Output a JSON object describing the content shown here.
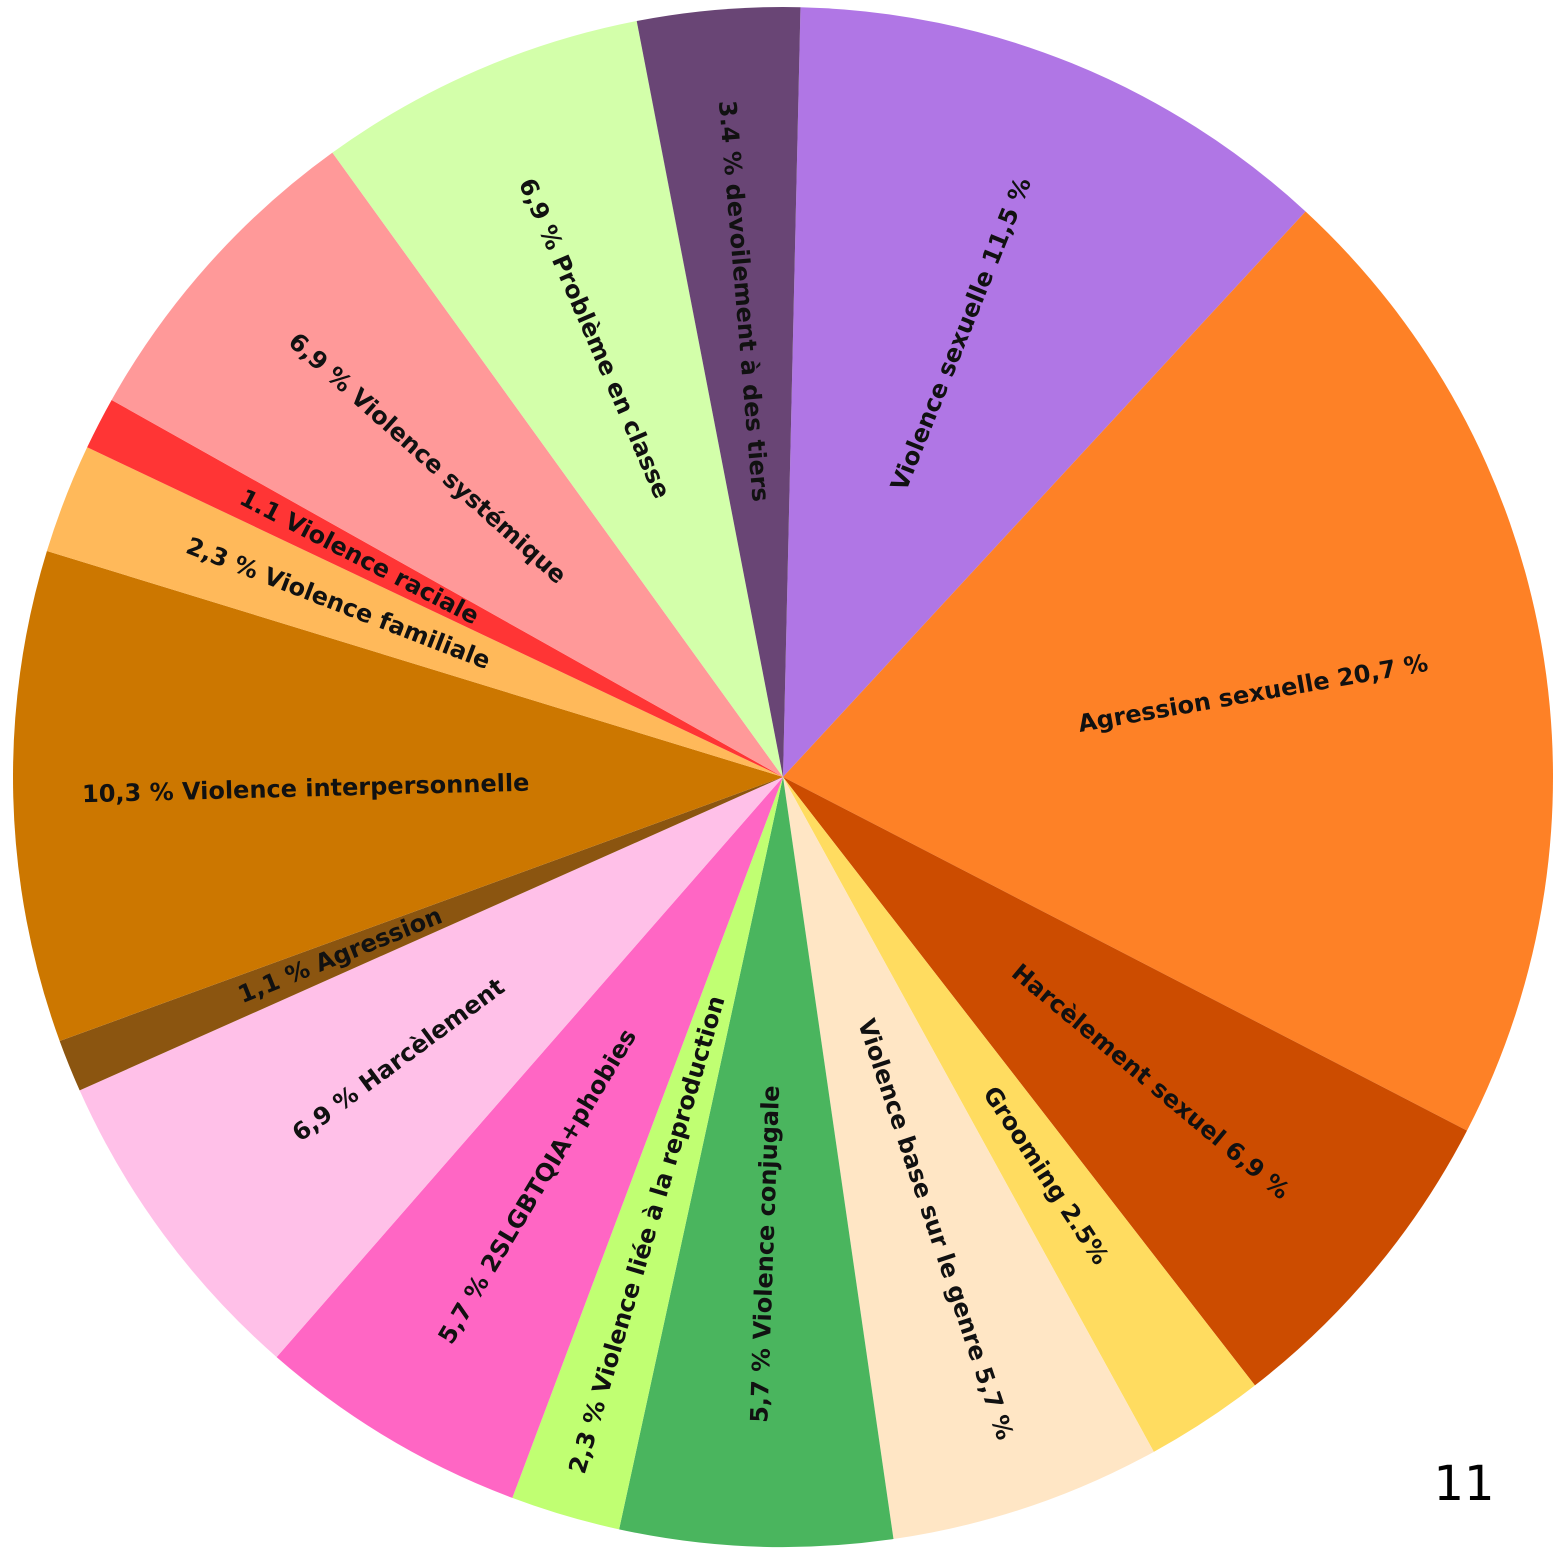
{
  "chart_data": {
    "type": "pie",
    "categories": [
      "Violence sexuelle 11,5 %",
      "Agression sexuelle 20,7 %",
      "Harcèlement sexuel 6,9 %",
      "Grooming 2.5%",
      "Violence base sur le genre 5,7 %",
      "5,7 % Violence conjugale",
      "2,3 % Violence liée à la reproduction",
      "5,7 % 2SLGBTQIA+phobies",
      "6,9 % Harcèlement",
      "1,1 % Agression",
      "10,3 % Violence interpersonnelle",
      "2,3 % Violence familiale",
      "1.1 Violence raciale",
      "6,9 % Violence systémique",
      "6,9 % Problème en classe",
      "3.4 % devoilement à des tiers"
    ],
    "values": [
      11.5,
      20.7,
      6.9,
      2.5,
      5.7,
      5.7,
      2.3,
      5.7,
      6.9,
      1.1,
      10.3,
      2.3,
      1.1,
      6.9,
      6.9,
      3.4
    ],
    "colors": [
      "#b076e5",
      "#fe8126",
      "#cc4c00",
      "#ffdc60",
      "#ffe6c5",
      "#4ab55e",
      "#c0ff72",
      "#ff66c4",
      "#ffc0e8",
      "#8b5510",
      "#cc7700",
      "#ffb95a",
      "#ff3535",
      "#ff9999",
      "#d3ffaa",
      "#694575"
    ]
  },
  "page_number": "11"
}
